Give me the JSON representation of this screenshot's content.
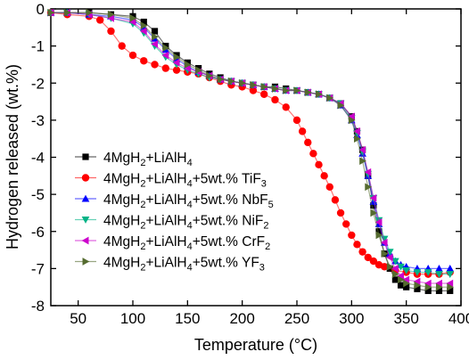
{
  "chart_data": {
    "type": "scatter",
    "xlabel": "Temperature (°C)",
    "ylabel": "Hydrogen released (wt.%)",
    "xlim": [
      25,
      400
    ],
    "ylim": [
      -8,
      0
    ],
    "xticks": [
      50,
      100,
      150,
      200,
      250,
      300,
      350,
      400
    ],
    "yticks": [
      0,
      -1,
      -2,
      -3,
      -4,
      -5,
      -6,
      -7,
      -8
    ],
    "grid": false,
    "legend_position": "lower-left",
    "series": [
      {
        "name": "4MgH2+LiAlH4",
        "legend": {
          "a": "4MgH",
          "s1": "2",
          "b": "+LiAlH",
          "s2": "4",
          "c": ""
        },
        "marker": "square",
        "color": "#000000",
        "x": [
          25,
          40,
          60,
          80,
          100,
          110,
          120,
          130,
          140,
          150,
          160,
          170,
          180,
          190,
          200,
          210,
          220,
          230,
          240,
          250,
          260,
          270,
          280,
          290,
          300,
          305,
          310,
          315,
          320,
          325,
          330,
          335,
          340,
          345,
          350,
          360,
          370,
          380,
          390
        ],
        "y": [
          -0.1,
          -0.1,
          -0.1,
          -0.15,
          -0.2,
          -0.35,
          -0.6,
          -1.0,
          -1.25,
          -1.45,
          -1.6,
          -1.75,
          -1.85,
          -1.95,
          -2.0,
          -2.05,
          -2.1,
          -2.1,
          -2.15,
          -2.2,
          -2.25,
          -2.3,
          -2.4,
          -2.55,
          -2.9,
          -3.3,
          -3.8,
          -4.5,
          -5.3,
          -6.0,
          -6.6,
          -7.0,
          -7.3,
          -7.45,
          -7.5,
          -7.55,
          -7.6,
          -7.6,
          -7.6
        ]
      },
      {
        "name": "4MgH2+LiAlH4+5wt.% TiF3",
        "legend": {
          "a": "4MgH",
          "s1": "2",
          "b": "+LiAlH",
          "s2": "4",
          "c": "+5wt.% TiF",
          "s3": "3"
        },
        "marker": "circle",
        "color": "#ff0000",
        "x": [
          25,
          40,
          60,
          70,
          80,
          90,
          100,
          110,
          120,
          130,
          140,
          150,
          160,
          170,
          180,
          190,
          200,
          210,
          220,
          230,
          240,
          250,
          255,
          260,
          265,
          270,
          275,
          280,
          285,
          290,
          295,
          300,
          305,
          310,
          315,
          320,
          325,
          330,
          340,
          350,
          360,
          370,
          380,
          390
        ],
        "y": [
          -0.1,
          -0.15,
          -0.2,
          -0.3,
          -0.6,
          -1.0,
          -1.25,
          -1.4,
          -1.5,
          -1.6,
          -1.65,
          -1.7,
          -1.75,
          -1.85,
          -1.95,
          -2.05,
          -2.1,
          -2.2,
          -2.3,
          -2.45,
          -2.65,
          -3.0,
          -3.3,
          -3.6,
          -3.9,
          -4.2,
          -4.5,
          -4.8,
          -5.15,
          -5.5,
          -5.8,
          -6.1,
          -6.35,
          -6.55,
          -6.7,
          -6.8,
          -6.9,
          -6.95,
          -7.05,
          -7.1,
          -7.15,
          -7.15,
          -7.15,
          -7.1
        ]
      },
      {
        "name": "4MgH2+LiAlH4+5wt.% NbF5",
        "legend": {
          "a": "4MgH",
          "s1": "2",
          "b": "+LiAlH",
          "s2": "4",
          "c": "+5wt.% NbF",
          "s3": "5"
        },
        "marker": "triangle-up",
        "color": "#0000ff",
        "x": [
          25,
          40,
          60,
          80,
          100,
          110,
          120,
          130,
          140,
          150,
          160,
          170,
          180,
          190,
          200,
          210,
          220,
          230,
          240,
          250,
          260,
          270,
          280,
          290,
          300,
          305,
          310,
          315,
          320,
          325,
          330,
          335,
          340,
          345,
          350,
          360,
          370,
          380,
          390
        ],
        "y": [
          -0.1,
          -0.1,
          -0.15,
          -0.2,
          -0.3,
          -0.5,
          -0.8,
          -1.1,
          -1.35,
          -1.55,
          -1.7,
          -1.8,
          -1.9,
          -1.95,
          -2.0,
          -2.05,
          -2.1,
          -2.15,
          -2.2,
          -2.2,
          -2.25,
          -2.3,
          -2.4,
          -2.6,
          -3.0,
          -3.4,
          -3.9,
          -4.5,
          -5.2,
          -5.8,
          -6.3,
          -6.6,
          -6.8,
          -6.9,
          -6.95,
          -7.0,
          -7.0,
          -7.0,
          -7.0
        ]
      },
      {
        "name": "4MgH2+LiAlH4+5wt.% NiF2",
        "legend": {
          "a": "4MgH",
          "s1": "2",
          "b": "+LiAlH",
          "s2": "4",
          "c": "+5wt.% NiF",
          "s3": "2"
        },
        "marker": "triangle-down",
        "color": "#00b386",
        "x": [
          25,
          40,
          60,
          80,
          100,
          110,
          120,
          130,
          140,
          150,
          160,
          170,
          180,
          190,
          200,
          210,
          220,
          230,
          240,
          250,
          260,
          270,
          280,
          290,
          300,
          305,
          310,
          315,
          320,
          325,
          330,
          335,
          340,
          345,
          350,
          360,
          370,
          380,
          390
        ],
        "y": [
          -0.1,
          -0.1,
          -0.15,
          -0.25,
          -0.4,
          -0.65,
          -1.0,
          -1.3,
          -1.5,
          -1.65,
          -1.75,
          -1.85,
          -1.9,
          -1.95,
          -2.0,
          -2.05,
          -2.1,
          -2.15,
          -2.2,
          -2.2,
          -2.25,
          -2.3,
          -2.4,
          -2.55,
          -2.95,
          -3.35,
          -3.85,
          -4.45,
          -5.1,
          -5.7,
          -6.2,
          -6.55,
          -6.8,
          -6.95,
          -7.05,
          -7.1,
          -7.1,
          -7.15,
          -7.15
        ]
      },
      {
        "name": "4MgH2+LiAlH4+5wt.% CrF2",
        "legend": {
          "a": "4MgH",
          "s1": "2",
          "b": "+LiAlH",
          "s2": "4",
          "c": "+5wt.% CrF",
          "s3": "2"
        },
        "marker": "triangle-left",
        "color": "#cc00cc",
        "x": [
          25,
          40,
          60,
          80,
          100,
          110,
          120,
          130,
          140,
          150,
          160,
          170,
          180,
          190,
          200,
          210,
          220,
          230,
          240,
          250,
          260,
          270,
          280,
          290,
          300,
          305,
          310,
          315,
          320,
          325,
          330,
          335,
          340,
          345,
          350,
          360,
          370,
          380,
          390
        ],
        "y": [
          -0.1,
          -0.1,
          -0.15,
          -0.25,
          -0.35,
          -0.6,
          -0.95,
          -1.25,
          -1.45,
          -1.6,
          -1.7,
          -1.8,
          -1.9,
          -1.95,
          -2.0,
          -2.05,
          -2.1,
          -2.15,
          -2.2,
          -2.2,
          -2.25,
          -2.3,
          -2.4,
          -2.55,
          -2.9,
          -3.3,
          -3.8,
          -4.4,
          -5.1,
          -5.75,
          -6.3,
          -6.7,
          -7.0,
          -7.2,
          -7.3,
          -7.35,
          -7.4,
          -7.4,
          -7.4
        ]
      },
      {
        "name": "4MgH2+LiAlH4+5wt.% YF3",
        "legend": {
          "a": "4MgH",
          "s1": "2",
          "b": "+LiAlH",
          "s2": "4",
          "c": "+5wt.% YF",
          "s3": "3"
        },
        "marker": "triangle-right",
        "color": "#556b2f",
        "x": [
          25,
          40,
          60,
          80,
          100,
          110,
          120,
          130,
          140,
          150,
          160,
          170,
          180,
          190,
          200,
          210,
          220,
          230,
          240,
          250,
          260,
          270,
          280,
          290,
          300,
          305,
          310,
          315,
          320,
          325,
          330,
          335,
          340,
          345,
          350,
          360,
          370,
          380,
          390
        ],
        "y": [
          -0.1,
          -0.1,
          -0.1,
          -0.15,
          -0.25,
          -0.45,
          -0.75,
          -1.05,
          -1.3,
          -1.5,
          -1.65,
          -1.8,
          -1.9,
          -1.95,
          -2.0,
          -2.05,
          -2.1,
          -2.15,
          -2.2,
          -2.2,
          -2.25,
          -2.3,
          -2.4,
          -2.6,
          -3.0,
          -3.5,
          -4.1,
          -4.8,
          -5.5,
          -6.1,
          -6.6,
          -6.95,
          -7.15,
          -7.3,
          -7.4,
          -7.45,
          -7.5,
          -7.5,
          -7.5
        ]
      }
    ]
  }
}
